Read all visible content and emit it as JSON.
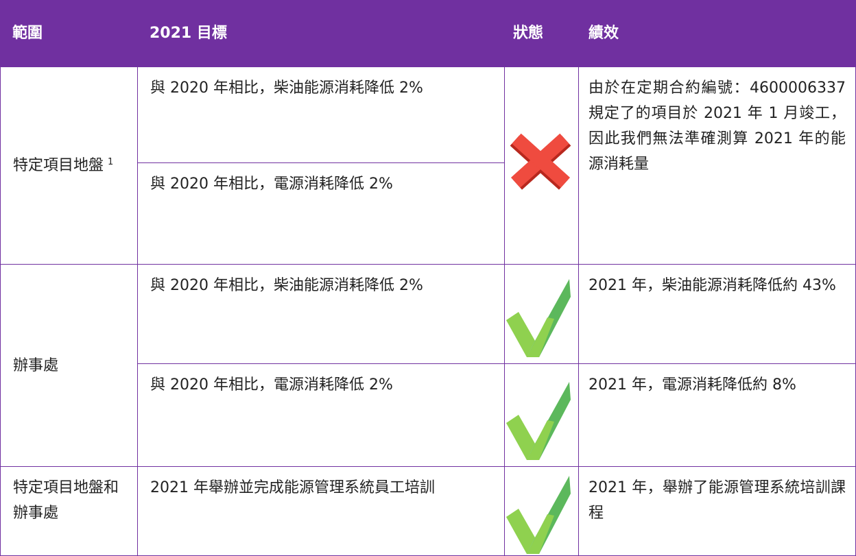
{
  "header": [
    "範圍",
    "2021 目標",
    "狀態",
    "績效"
  ],
  "rows": [
    {
      "scope": "特定項目地盤",
      "scope_note": "1",
      "targets": [
        "與 2020 年相比，柴油能源消耗降低 2%",
        "與 2020 年相比，電源消耗降低 2%"
      ],
      "performance": [
        "由於在定期合約編號：4600006337 規定了的項目於 2021 年 1 月竣工，因此我們無法準確測算 2021 年的能源消耗量"
      ]
    },
    {
      "scope": "辦事處",
      "targets": [
        "與 2020 年相比，柴油能源消耗降低 2%",
        "與 2020 年相比，電源消耗降低 2%"
      ],
      "performance": [
        "2021 年，柴油能源消耗降低約 43%",
        "2021 年，電源消耗降低約 8%"
      ]
    },
    {
      "scope": "特定項目地盤和辦事處",
      "targets": [
        "2021 年舉辦並完成能源管理系統員工培訓"
      ],
      "performance": [
        "2021 年，舉辦了能源管理系統培訓課程"
      ]
    }
  ]
}
